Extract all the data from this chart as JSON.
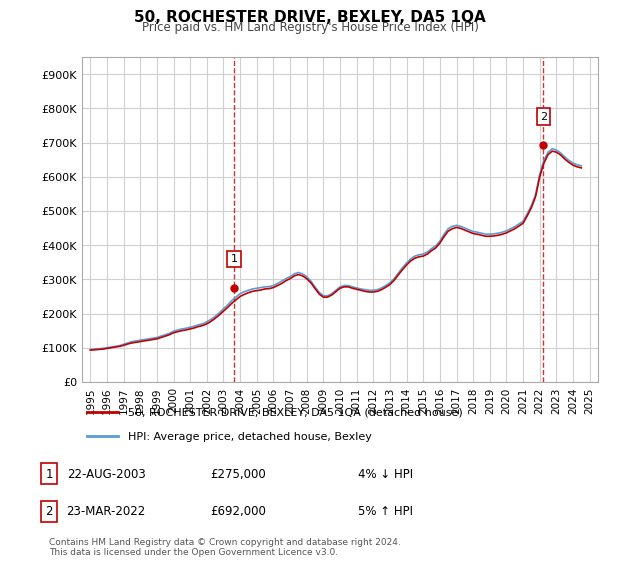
{
  "title": "50, ROCHESTER DRIVE, BEXLEY, DA5 1QA",
  "subtitle": "Price paid vs. HM Land Registry's House Price Index (HPI)",
  "ylabel_ticks": [
    "£0",
    "£100K",
    "£200K",
    "£300K",
    "£400K",
    "£500K",
    "£600K",
    "£700K",
    "£800K",
    "£900K"
  ],
  "ytick_vals": [
    0,
    100000,
    200000,
    300000,
    400000,
    500000,
    600000,
    700000,
    800000,
    900000
  ],
  "ylim": [
    0,
    950000
  ],
  "xlim_start": 1994.5,
  "xlim_end": 2025.5,
  "xtick_years": [
    1995,
    1996,
    1997,
    1998,
    1999,
    2000,
    2001,
    2002,
    2003,
    2004,
    2005,
    2006,
    2007,
    2008,
    2009,
    2010,
    2011,
    2012,
    2013,
    2014,
    2015,
    2016,
    2017,
    2018,
    2019,
    2020,
    2021,
    2022,
    2023,
    2024,
    2025
  ],
  "hpi_color": "#5b9bd5",
  "price_color": "#c00000",
  "sale1_x": 2003.65,
  "sale1_y": 275000,
  "sale2_x": 2022.22,
  "sale2_y": 692000,
  "vline1_x": 2003.65,
  "vline2_x": 2022.22,
  "legend_line1": "50, ROCHESTER DRIVE, BEXLEY, DA5 1QA (detached house)",
  "legend_line2": "HPI: Average price, detached house, Bexley",
  "annotation1_label": "1",
  "annotation2_label": "2",
  "table_row1": [
    "1",
    "22-AUG-2003",
    "£275,000",
    "4% ↓ HPI"
  ],
  "table_row2": [
    "2",
    "23-MAR-2022",
    "£692,000",
    "5% ↑ HPI"
  ],
  "footnote": "Contains HM Land Registry data © Crown copyright and database right 2024.\nThis data is licensed under the Open Government Licence v3.0.",
  "bg_color": "#ffffff",
  "plot_bg_color": "#ffffff",
  "grid_color": "#d0d0d0",
  "hpi_data_x": [
    1995,
    1995.25,
    1995.5,
    1995.75,
    1996,
    1996.25,
    1996.5,
    1996.75,
    1997,
    1997.25,
    1997.5,
    1997.75,
    1998,
    1998.25,
    1998.5,
    1998.75,
    1999,
    1999.25,
    1999.5,
    1999.75,
    2000,
    2000.25,
    2000.5,
    2000.75,
    2001,
    2001.25,
    2001.5,
    2001.75,
    2002,
    2002.25,
    2002.5,
    2002.75,
    2003,
    2003.25,
    2003.5,
    2003.75,
    2004,
    2004.25,
    2004.5,
    2004.75,
    2005,
    2005.25,
    2005.5,
    2005.75,
    2006,
    2006.25,
    2006.5,
    2006.75,
    2007,
    2007.25,
    2007.5,
    2007.75,
    2008,
    2008.25,
    2008.5,
    2008.75,
    2009,
    2009.25,
    2009.5,
    2009.75,
    2010,
    2010.25,
    2010.5,
    2010.75,
    2011,
    2011.25,
    2011.5,
    2011.75,
    2012,
    2012.25,
    2012.5,
    2012.75,
    2013,
    2013.25,
    2013.5,
    2013.75,
    2014,
    2014.25,
    2014.5,
    2014.75,
    2015,
    2015.25,
    2015.5,
    2015.75,
    2016,
    2016.25,
    2016.5,
    2016.75,
    2017,
    2017.25,
    2017.5,
    2017.75,
    2018,
    2018.25,
    2018.5,
    2018.75,
    2019,
    2019.25,
    2019.5,
    2019.75,
    2020,
    2020.25,
    2020.5,
    2020.75,
    2021,
    2021.25,
    2021.5,
    2021.75,
    2022,
    2022.25,
    2022.5,
    2022.75,
    2023,
    2023.25,
    2023.5,
    2023.75,
    2024,
    2024.25,
    2024.5
  ],
  "hpi_data_y": [
    95000,
    96000,
    97000,
    98000,
    100000,
    102000,
    104000,
    106000,
    110000,
    114000,
    118000,
    120000,
    122000,
    124000,
    126000,
    128000,
    130000,
    134000,
    138000,
    142000,
    148000,
    152000,
    155000,
    157000,
    160000,
    163000,
    167000,
    170000,
    176000,
    183000,
    192000,
    202000,
    214000,
    225000,
    238000,
    248000,
    258000,
    264000,
    268000,
    272000,
    274000,
    276000,
    278000,
    279000,
    282000,
    288000,
    295000,
    302000,
    308000,
    316000,
    320000,
    316000,
    308000,
    295000,
    278000,
    262000,
    252000,
    252000,
    258000,
    268000,
    278000,
    282000,
    282000,
    278000,
    275000,
    272000,
    270000,
    268000,
    268000,
    270000,
    275000,
    282000,
    290000,
    302000,
    318000,
    334000,
    348000,
    360000,
    368000,
    372000,
    374000,
    380000,
    390000,
    398000,
    412000,
    432000,
    448000,
    455000,
    458000,
    455000,
    450000,
    445000,
    440000,
    438000,
    435000,
    432000,
    432000,
    433000,
    435000,
    438000,
    442000,
    448000,
    454000,
    462000,
    470000,
    492000,
    516000,
    548000,
    608000,
    648000,
    672000,
    682000,
    678000,
    670000,
    658000,
    648000,
    640000,
    635000,
    632000
  ],
  "price_data_x": [
    1995,
    1995.25,
    1995.5,
    1995.75,
    1996,
    1996.25,
    1996.5,
    1996.75,
    1997,
    1997.25,
    1997.5,
    1997.75,
    1998,
    1998.25,
    1998.5,
    1998.75,
    1999,
    1999.25,
    1999.5,
    1999.75,
    2000,
    2000.25,
    2000.5,
    2000.75,
    2001,
    2001.25,
    2001.5,
    2001.75,
    2002,
    2002.25,
    2002.5,
    2002.75,
    2003,
    2003.25,
    2003.5,
    2003.75,
    2004,
    2004.25,
    2004.5,
    2004.75,
    2005,
    2005.25,
    2005.5,
    2005.75,
    2006,
    2006.25,
    2006.5,
    2006.75,
    2007,
    2007.25,
    2007.5,
    2007.75,
    2008,
    2008.25,
    2008.5,
    2008.75,
    2009,
    2009.25,
    2009.5,
    2009.75,
    2010,
    2010.25,
    2010.5,
    2010.75,
    2011,
    2011.25,
    2011.5,
    2011.75,
    2012,
    2012.25,
    2012.5,
    2012.75,
    2013,
    2013.25,
    2013.5,
    2013.75,
    2014,
    2014.25,
    2014.5,
    2014.75,
    2015,
    2015.25,
    2015.5,
    2015.75,
    2016,
    2016.25,
    2016.5,
    2016.75,
    2017,
    2017.25,
    2017.5,
    2017.75,
    2018,
    2018.25,
    2018.5,
    2018.75,
    2019,
    2019.25,
    2019.5,
    2019.75,
    2020,
    2020.25,
    2020.5,
    2020.75,
    2021,
    2021.25,
    2021.5,
    2021.75,
    2022,
    2022.25,
    2022.5,
    2022.75,
    2023,
    2023.25,
    2023.5,
    2023.75,
    2024,
    2024.25,
    2024.5
  ],
  "price_data_y": [
    93000,
    94000,
    95000,
    96000,
    98000,
    100000,
    102000,
    104000,
    107000,
    111000,
    114000,
    116000,
    118000,
    120000,
    122000,
    124000,
    126000,
    130000,
    134000,
    138000,
    144000,
    147000,
    150000,
    152000,
    155000,
    158000,
    162000,
    165000,
    170000,
    177000,
    186000,
    196000,
    207000,
    218000,
    230000,
    240000,
    250000,
    256000,
    261000,
    265000,
    267000,
    269000,
    272000,
    273000,
    276000,
    282000,
    288000,
    296000,
    302000,
    310000,
    314000,
    310000,
    302000,
    290000,
    273000,
    257000,
    248000,
    248000,
    254000,
    264000,
    274000,
    278000,
    278000,
    274000,
    271000,
    268000,
    265000,
    263000,
    263000,
    265000,
    270000,
    277000,
    285000,
    297000,
    313000,
    328000,
    342000,
    354000,
    362000,
    366000,
    368000,
    374000,
    384000,
    392000,
    406000,
    425000,
    441000,
    448000,
    452000,
    449000,
    444000,
    439000,
    434000,
    432000,
    429000,
    426000,
    426000,
    427000,
    429000,
    432000,
    436000,
    442000,
    448000,
    456000,
    464000,
    486000,
    510000,
    542000,
    600000,
    640000,
    665000,
    675000,
    672000,
    664000,
    652000,
    642000,
    634000,
    629000,
    626000
  ]
}
